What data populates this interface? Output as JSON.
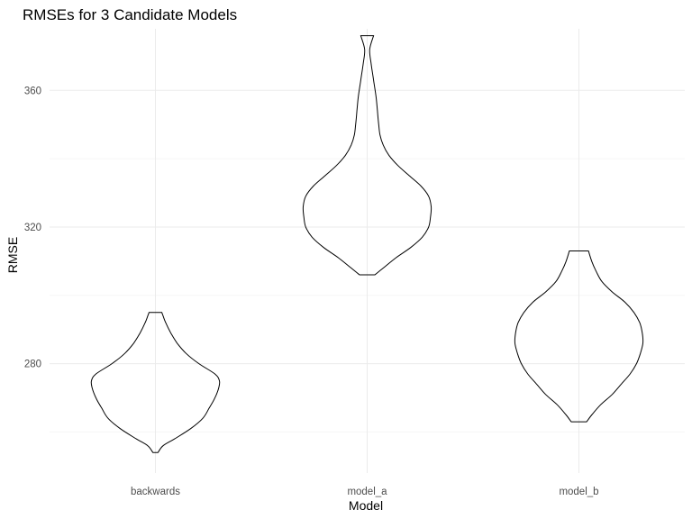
{
  "chart_data": {
    "type": "violin",
    "title": "RMSEs for 3 Candidate Models",
    "xlabel": "Model",
    "ylabel": "RMSE",
    "categories": [
      "backwards",
      "model_a",
      "model_b"
    ],
    "yticks": [
      280,
      320,
      360
    ],
    "ylim": [
      248,
      378
    ],
    "grid": true,
    "legend": "none",
    "series": [
      {
        "category": "backwards",
        "range": [
          254,
          295
        ],
        "density": [
          {
            "y": 254,
            "w": 0.04
          },
          {
            "y": 256,
            "w": 0.12
          },
          {
            "y": 258,
            "w": 0.3
          },
          {
            "y": 261,
            "w": 0.55
          },
          {
            "y": 264,
            "w": 0.74
          },
          {
            "y": 267,
            "w": 0.84
          },
          {
            "y": 270,
            "w": 0.93
          },
          {
            "y": 273,
            "w": 0.99
          },
          {
            "y": 275,
            "w": 1.0
          },
          {
            "y": 277,
            "w": 0.93
          },
          {
            "y": 280,
            "w": 0.68
          },
          {
            "y": 283,
            "w": 0.48
          },
          {
            "y": 286,
            "w": 0.34
          },
          {
            "y": 289,
            "w": 0.24
          },
          {
            "y": 292,
            "w": 0.16
          },
          {
            "y": 294,
            "w": 0.12
          },
          {
            "y": 295,
            "w": 0.1
          }
        ]
      },
      {
        "category": "model_a",
        "range": [
          306,
          376
        ],
        "density": [
          {
            "y": 306,
            "w": 0.12
          },
          {
            "y": 308,
            "w": 0.25
          },
          {
            "y": 311,
            "w": 0.45
          },
          {
            "y": 314,
            "w": 0.68
          },
          {
            "y": 317,
            "w": 0.86
          },
          {
            "y": 320,
            "w": 0.96
          },
          {
            "y": 323,
            "w": 0.99
          },
          {
            "y": 326,
            "w": 1.0
          },
          {
            "y": 329,
            "w": 0.96
          },
          {
            "y": 332,
            "w": 0.84
          },
          {
            "y": 335,
            "w": 0.66
          },
          {
            "y": 338,
            "w": 0.48
          },
          {
            "y": 341,
            "w": 0.34
          },
          {
            "y": 344,
            "w": 0.25
          },
          {
            "y": 347,
            "w": 0.2
          },
          {
            "y": 350,
            "w": 0.18
          },
          {
            "y": 354,
            "w": 0.16
          },
          {
            "y": 358,
            "w": 0.14
          },
          {
            "y": 363,
            "w": 0.1
          },
          {
            "y": 368,
            "w": 0.06
          },
          {
            "y": 372,
            "w": 0.04
          },
          {
            "y": 376,
            "w": 0.1
          }
        ]
      },
      {
        "category": "model_b",
        "range": [
          263,
          313
        ],
        "density": [
          {
            "y": 263,
            "w": 0.12
          },
          {
            "y": 265,
            "w": 0.2
          },
          {
            "y": 268,
            "w": 0.34
          },
          {
            "y": 271,
            "w": 0.52
          },
          {
            "y": 274,
            "w": 0.66
          },
          {
            "y": 277,
            "w": 0.8
          },
          {
            "y": 280,
            "w": 0.9
          },
          {
            "y": 283,
            "w": 0.96
          },
          {
            "y": 286,
            "w": 1.0
          },
          {
            "y": 289,
            "w": 0.99
          },
          {
            "y": 292,
            "w": 0.95
          },
          {
            "y": 295,
            "w": 0.86
          },
          {
            "y": 298,
            "w": 0.72
          },
          {
            "y": 301,
            "w": 0.52
          },
          {
            "y": 304,
            "w": 0.36
          },
          {
            "y": 307,
            "w": 0.27
          },
          {
            "y": 310,
            "w": 0.2
          },
          {
            "y": 313,
            "w": 0.15
          }
        ]
      }
    ]
  }
}
